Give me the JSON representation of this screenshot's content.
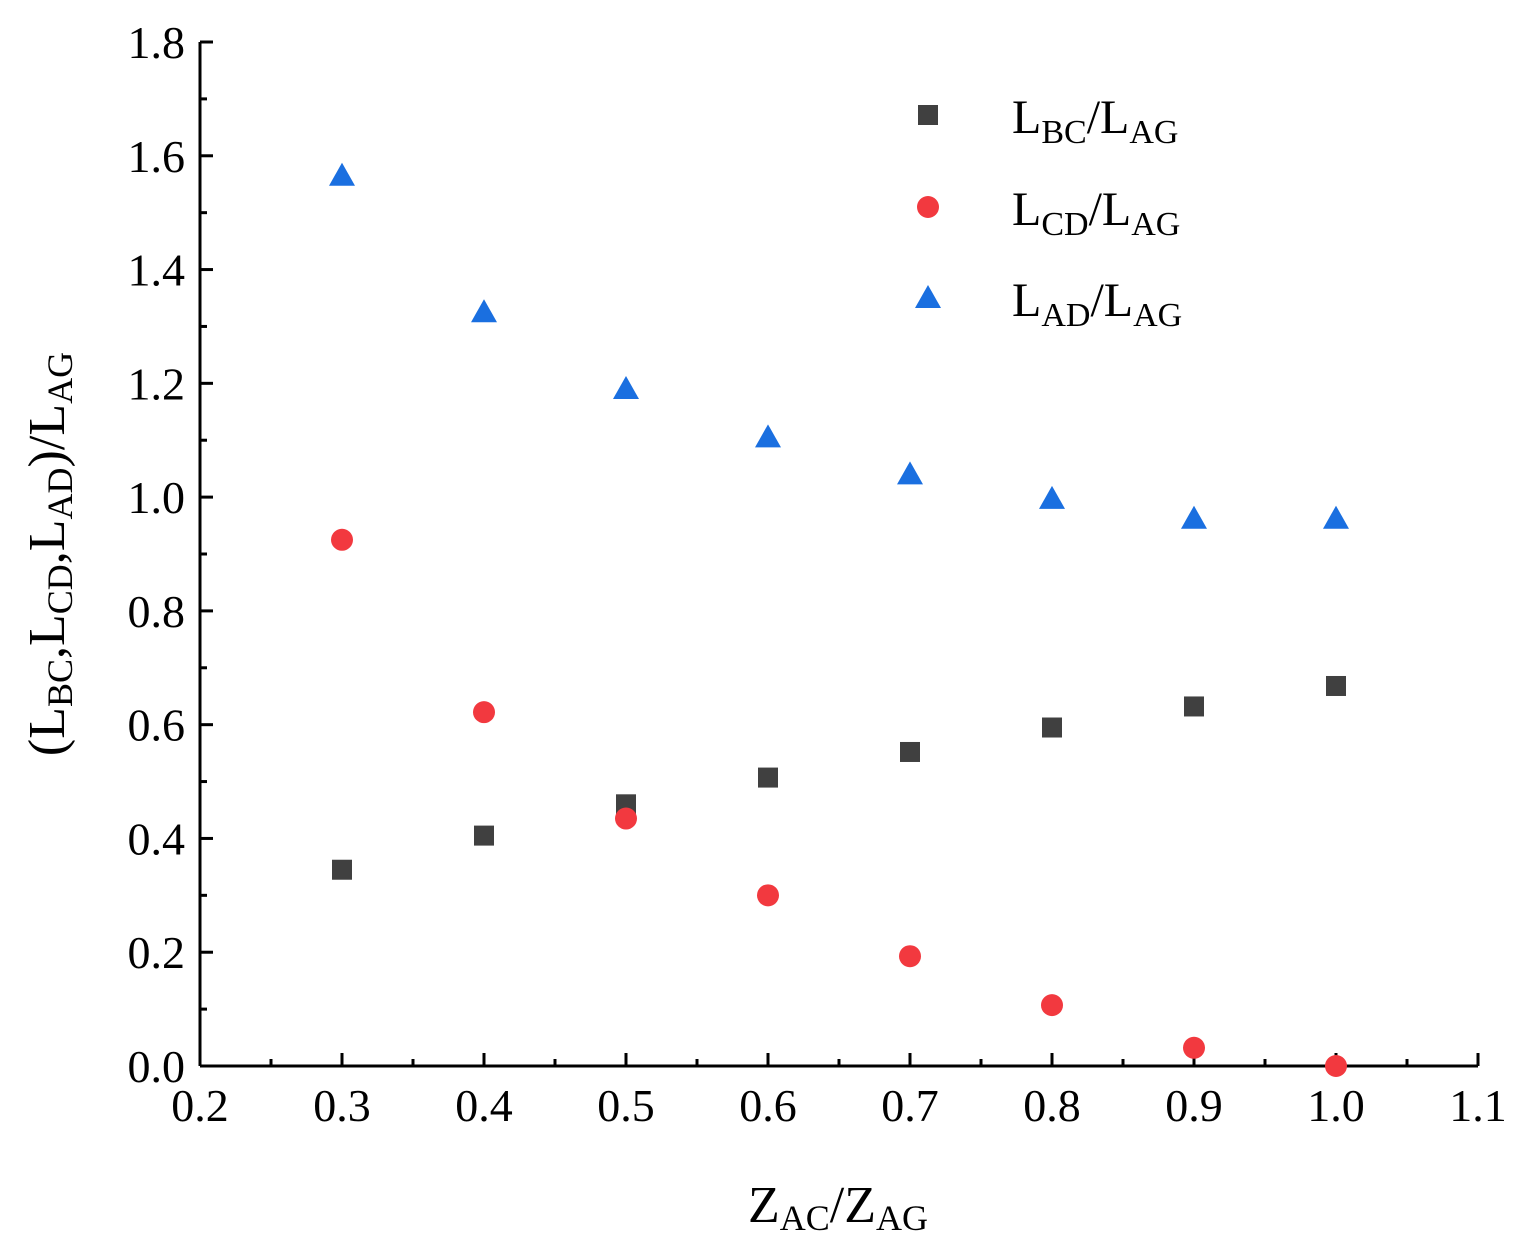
{
  "chart_data": {
    "type": "scatter",
    "title": "",
    "xlabel": {
      "parts": [
        {
          "text": "Z",
          "sub": false
        },
        {
          "text": "AC",
          "sub": true
        },
        {
          "text": "/Z",
          "sub": false
        },
        {
          "text": "AG",
          "sub": true
        }
      ]
    },
    "ylabel": {
      "parts": [
        {
          "text": "(L",
          "sub": false
        },
        {
          "text": "BC",
          "sub": true
        },
        {
          "text": ",L",
          "sub": false
        },
        {
          "text": "CD",
          "sub": true
        },
        {
          "text": ",L",
          "sub": false
        },
        {
          "text": "AD",
          "sub": true
        },
        {
          "text": ")/L",
          "sub": false
        },
        {
          "text": "AG",
          "sub": true
        }
      ]
    },
    "xlim": [
      0.2,
      1.1
    ],
    "ylim": [
      0.0,
      1.8
    ],
    "x_ticks": [
      "0.2",
      "0.3",
      "0.4",
      "0.5",
      "0.6",
      "0.7",
      "0.8",
      "0.9",
      "1.0",
      "1.1"
    ],
    "y_ticks": [
      "0.0",
      "0.2",
      "0.4",
      "0.6",
      "0.8",
      "1.0",
      "1.2",
      "1.4",
      "1.6",
      "1.8"
    ],
    "x": [
      0.3,
      0.4,
      0.5,
      0.6,
      0.7,
      0.8,
      0.9,
      1.0
    ],
    "legend_position": "top-right",
    "series": [
      {
        "name": "LBC/LAG",
        "label_main": "L",
        "label_sub1": "BC",
        "label_mid": "/L",
        "label_sub2": "AG",
        "marker": "square",
        "color": "#404040",
        "values": [
          0.345,
          0.405,
          0.46,
          0.507,
          0.552,
          0.595,
          0.632,
          0.668
        ]
      },
      {
        "name": "LCD/LAG",
        "label_main": "L",
        "label_sub1": "CD",
        "label_mid": "/L",
        "label_sub2": "AG",
        "marker": "circle",
        "color": "#f2393f",
        "values": [
          0.925,
          0.622,
          0.435,
          0.3,
          0.193,
          0.107,
          0.032,
          0.0
        ]
      },
      {
        "name": "LAD/LAG",
        "label_main": "L",
        "label_sub1": "AD",
        "label_mid": "/L",
        "label_sub2": "AG",
        "marker": "triangle",
        "color": "#1a6fe0",
        "values": [
          1.565,
          1.325,
          1.19,
          1.105,
          1.04,
          0.997,
          0.962,
          0.962
        ]
      }
    ]
  }
}
